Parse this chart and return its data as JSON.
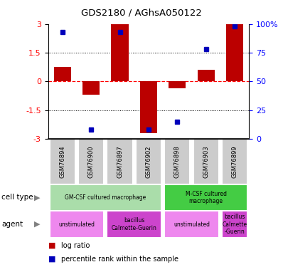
{
  "title": "GDS2180 / AGhsA050122",
  "samples": [
    "GSM76894",
    "GSM76900",
    "GSM76897",
    "GSM76902",
    "GSM76898",
    "GSM76903",
    "GSM76899"
  ],
  "log_ratio": [
    0.75,
    -0.7,
    3.0,
    -2.7,
    -0.35,
    0.6,
    3.0
  ],
  "percentile": [
    93,
    8,
    93,
    8,
    15,
    78,
    98
  ],
  "ylim": [
    -3,
    3
  ],
  "yticks": [
    -3,
    -1.5,
    0,
    1.5,
    3
  ],
  "ytick_labels": [
    "-3",
    "-1.5",
    "0",
    "1.5",
    "3"
  ],
  "right_yticks": [
    0,
    25,
    50,
    75,
    100
  ],
  "right_ytick_labels": [
    "0",
    "25",
    "50",
    "75",
    "100%"
  ],
  "bar_color": "#bb0000",
  "dot_color": "#0000bb",
  "cell_type_groups": [
    {
      "label": "GM-CSF cultured macrophage",
      "start": 0,
      "end": 4,
      "color": "#aaddaa"
    },
    {
      "label": "M-CSF cultured\nmacrophage",
      "start": 4,
      "end": 7,
      "color": "#44cc44"
    }
  ],
  "agent_groups": [
    {
      "label": "unstimulated",
      "start": 0,
      "end": 2,
      "color": "#ee88ee"
    },
    {
      "label": "bacillus\nCalmette-Guerin",
      "start": 2,
      "end": 4,
      "color": "#cc44cc"
    },
    {
      "label": "unstimulated",
      "start": 4,
      "end": 6,
      "color": "#ee88ee"
    },
    {
      "label": "bacillus\nCalmette\n-Guerin",
      "start": 6,
      "end": 7,
      "color": "#cc44cc"
    }
  ]
}
